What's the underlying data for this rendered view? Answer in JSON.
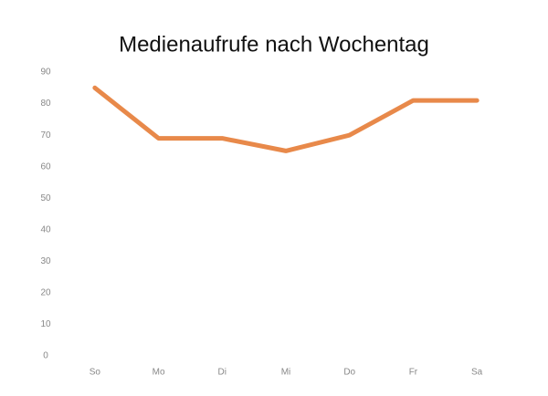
{
  "chart_data": {
    "type": "line",
    "title": "Medienaufrufe nach Wochentag",
    "categories": [
      "So",
      "Mo",
      "Di",
      "Mi",
      "Do",
      "Fr",
      "Sa"
    ],
    "values": [
      85,
      69,
      69,
      65,
      70,
      81,
      81
    ],
    "color": "#e8894a",
    "ylim": [
      0,
      90
    ],
    "yticks": [
      0,
      10,
      20,
      30,
      40,
      50,
      60,
      70,
      80,
      90
    ],
    "grid": false
  }
}
